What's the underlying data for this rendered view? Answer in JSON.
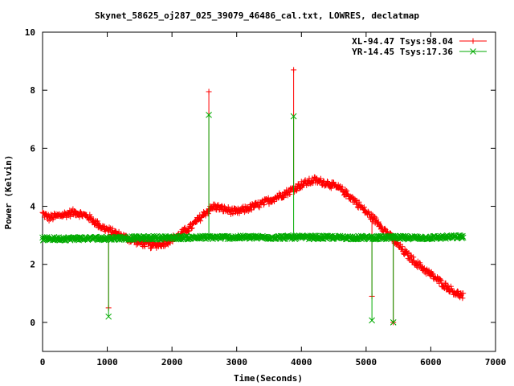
{
  "chart_data": {
    "type": "line",
    "title": "Skynet_58625_oj287_025_39079_46486_cal.txt, LOWRES, declatmap",
    "xlabel": "Time(Seconds)",
    "ylabel": "Power (Kelvin)",
    "xlim": [
      0,
      7000
    ],
    "ylim": [
      -1,
      10
    ],
    "xticks": [
      "0",
      "1000",
      "2000",
      "3000",
      "4000",
      "5000",
      "6000",
      "7000"
    ],
    "yticks": [
      "0",
      "2",
      "4",
      "6",
      "8",
      "10"
    ],
    "legend_position": "top-right",
    "grid": false,
    "series": [
      {
        "name": "XL-94.47 Tsys:98.04",
        "color": "#ff0000",
        "marker": "plus",
        "x_range": [
          0,
          6500
        ],
        "noise": 0.12,
        "curve": [
          [
            0,
            3.75
          ],
          [
            100,
            3.6
          ],
          [
            300,
            3.7
          ],
          [
            500,
            3.8
          ],
          [
            700,
            3.65
          ],
          [
            900,
            3.3
          ],
          [
            1100,
            3.1
          ],
          [
            1300,
            2.9
          ],
          [
            1500,
            2.75
          ],
          [
            1700,
            2.65
          ],
          [
            1900,
            2.75
          ],
          [
            2100,
            3.0
          ],
          [
            2300,
            3.3
          ],
          [
            2500,
            3.75
          ],
          [
            2650,
            4.0
          ],
          [
            2800,
            3.9
          ],
          [
            3000,
            3.8
          ],
          [
            3200,
            3.95
          ],
          [
            3400,
            4.1
          ],
          [
            3600,
            4.3
          ],
          [
            3800,
            4.5
          ],
          [
            4000,
            4.75
          ],
          [
            4200,
            4.9
          ],
          [
            4400,
            4.8
          ],
          [
            4600,
            4.6
          ],
          [
            4800,
            4.25
          ],
          [
            5000,
            3.8
          ],
          [
            5200,
            3.4
          ],
          [
            5400,
            2.9
          ],
          [
            5600,
            2.4
          ],
          [
            5800,
            2.0
          ],
          [
            6000,
            1.65
          ],
          [
            6200,
            1.3
          ],
          [
            6400,
            1.0
          ],
          [
            6500,
            0.9
          ]
        ],
        "spikes": [
          [
            1020,
            0.5
          ],
          [
            2570,
            7.95
          ],
          [
            3880,
            8.7
          ],
          [
            5090,
            0.9
          ],
          [
            5420,
            0.0
          ]
        ]
      },
      {
        "name": "YR-14.45 Tsys:17.36",
        "color": "#00aa00",
        "marker": "x",
        "x_range": [
          0,
          6500
        ],
        "noise": 0.06,
        "curve": [
          [
            0,
            2.88
          ],
          [
            1000,
            2.9
          ],
          [
            2000,
            2.92
          ],
          [
            3000,
            2.93
          ],
          [
            4000,
            2.93
          ],
          [
            5000,
            2.92
          ],
          [
            6000,
            2.92
          ],
          [
            6500,
            2.95
          ]
        ],
        "spikes": [
          [
            1020,
            0.2
          ],
          [
            2570,
            7.15
          ],
          [
            3880,
            7.1
          ],
          [
            5090,
            0.07
          ],
          [
            5420,
            0.0
          ]
        ]
      }
    ]
  }
}
